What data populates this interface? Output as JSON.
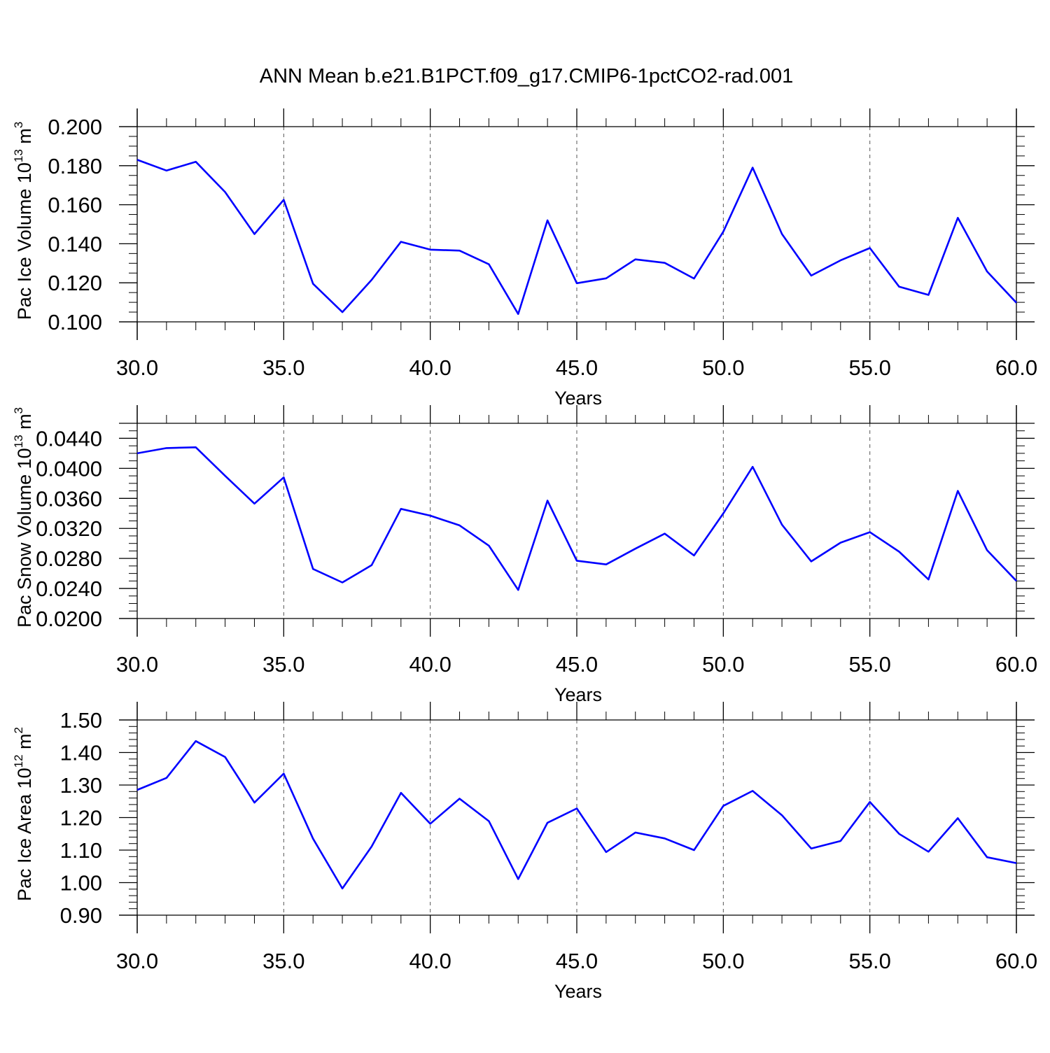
{
  "figure": {
    "title": "ANN Mean b.e21.B1PCT.f09_g17.CMIP6-1pctCO2-rad.001"
  },
  "colors": {
    "line": "#0000ff",
    "axis": "#000000",
    "grid": "#555555",
    "background": "#ffffff"
  },
  "chart_data": [
    {
      "type": "line",
      "xlabel": "Years",
      "ylabel": "Pac Ice Volume 10",
      "ylabel_sup": "13",
      "ylabel_unit": "m",
      "ylabel_unit_sup": "3",
      "xlim": [
        30,
        60
      ],
      "ylim": [
        0.1,
        0.2
      ],
      "x_ticks": [
        30,
        35,
        40,
        45,
        50,
        55,
        60
      ],
      "x_tick_labels": [
        "30.0",
        "35.0",
        "40.0",
        "45.0",
        "50.0",
        "55.0",
        "60.0"
      ],
      "y_ticks": [
        0.1,
        0.12,
        0.14,
        0.16,
        0.18,
        0.2
      ],
      "y_tick_labels": [
        "0.100",
        "0.120",
        "0.140",
        "0.160",
        "0.180",
        "0.200"
      ],
      "y_minor_step": 0.005,
      "grid": "vertical dashed at major x ticks",
      "series": [
        {
          "x": [
            30,
            31,
            32,
            33,
            34,
            35,
            36,
            37,
            38,
            39,
            40,
            41,
            42,
            43,
            44,
            45,
            46,
            47,
            48,
            49,
            50,
            51,
            52,
            53,
            54,
            55,
            56,
            57,
            58,
            59,
            60
          ],
          "values": [
            0.183,
            0.1775,
            0.182,
            0.1665,
            0.145,
            0.1625,
            0.1195,
            0.105,
            0.1215,
            0.141,
            0.137,
            0.1365,
            0.1295,
            0.104,
            0.152,
            0.1198,
            0.1223,
            0.132,
            0.1302,
            0.1222,
            0.1462,
            0.179,
            0.145,
            0.1237,
            0.1315,
            0.1378,
            0.118,
            0.1138,
            0.1533,
            0.1258,
            0.1098
          ]
        }
      ]
    },
    {
      "type": "line",
      "xlabel": "Years",
      "ylabel": "Pac Snow Volume 10",
      "ylabel_sup": "13",
      "ylabel_unit": "m",
      "ylabel_unit_sup": "3",
      "xlim": [
        30,
        60
      ],
      "ylim": [
        0.02,
        0.046
      ],
      "x_ticks": [
        30,
        35,
        40,
        45,
        50,
        55,
        60
      ],
      "x_tick_labels": [
        "30.0",
        "35.0",
        "40.0",
        "45.0",
        "50.0",
        "55.0",
        "60.0"
      ],
      "y_ticks": [
        0.02,
        0.024,
        0.028,
        0.032,
        0.036,
        0.04,
        0.044
      ],
      "y_tick_labels": [
        "0.0200",
        "0.0240",
        "0.0280",
        "0.0320",
        "0.0360",
        "0.0400",
        "0.0440"
      ],
      "y_minor_step": 0.001,
      "grid": "vertical dashed at major x ticks",
      "series": [
        {
          "x": [
            30,
            31,
            32,
            33,
            34,
            35,
            36,
            37,
            38,
            39,
            40,
            41,
            42,
            43,
            44,
            45,
            46,
            47,
            48,
            49,
            50,
            51,
            52,
            53,
            54,
            55,
            56,
            57,
            58,
            59,
            60
          ],
          "values": [
            0.042,
            0.0427,
            0.0428,
            0.039,
            0.0353,
            0.0388,
            0.0266,
            0.0248,
            0.0271,
            0.0346,
            0.0337,
            0.0324,
            0.0297,
            0.0238,
            0.0357,
            0.0277,
            0.0272,
            0.0293,
            0.0313,
            0.0284,
            0.034,
            0.0402,
            0.0325,
            0.0276,
            0.0301,
            0.0315,
            0.0289,
            0.0252,
            0.037,
            0.0291,
            0.025
          ]
        }
      ]
    },
    {
      "type": "line",
      "xlabel": "Years",
      "ylabel": "Pac Ice Area 10",
      "ylabel_sup": "12",
      "ylabel_unit": "m",
      "ylabel_unit_sup": "2",
      "xlim": [
        30,
        60
      ],
      "ylim": [
        0.9,
        1.5
      ],
      "x_ticks": [
        30,
        35,
        40,
        45,
        50,
        55,
        60
      ],
      "x_tick_labels": [
        "30.0",
        "35.0",
        "40.0",
        "45.0",
        "50.0",
        "55.0",
        "60.0"
      ],
      "y_ticks": [
        0.9,
        1.0,
        1.1,
        1.2,
        1.3,
        1.4,
        1.5
      ],
      "y_tick_labels": [
        "0.90",
        "1.00",
        "1.10",
        "1.20",
        "1.30",
        "1.40",
        "1.50"
      ],
      "y_minor_step": 0.02,
      "grid": "vertical dashed at major x ticks",
      "series": [
        {
          "x": [
            30,
            31,
            32,
            33,
            34,
            35,
            36,
            37,
            38,
            39,
            40,
            41,
            42,
            43,
            44,
            45,
            46,
            47,
            48,
            49,
            50,
            51,
            52,
            53,
            54,
            55,
            56,
            57,
            58,
            59,
            60
          ],
          "values": [
            1.285,
            1.322,
            1.435,
            1.386,
            1.246,
            1.335,
            1.135,
            0.982,
            1.111,
            1.276,
            1.181,
            1.258,
            1.189,
            1.011,
            1.184,
            1.228,
            1.094,
            1.154,
            1.136,
            1.1,
            1.236,
            1.282,
            1.207,
            1.105,
            1.128,
            1.248,
            1.15,
            1.095,
            1.198,
            1.078,
            1.06
          ]
        }
      ]
    }
  ]
}
